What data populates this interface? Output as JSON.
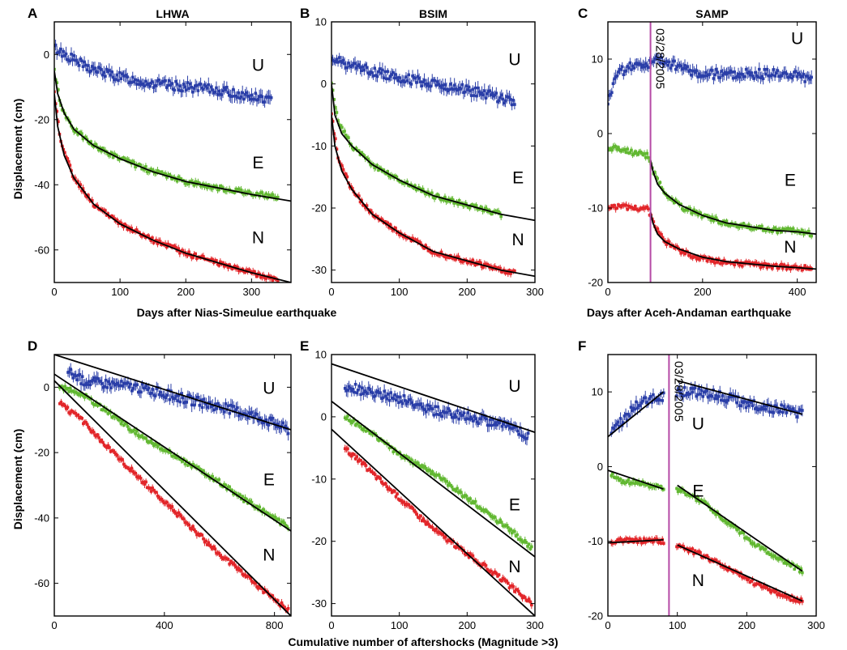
{
  "figure": {
    "xlabel_top_left": "Days after Nias-Simeulue earthquake",
    "xlabel_top_right": "Days after Aceh-Andaman earthquake",
    "xlabel_bottom": "Cumulative number of aftershocks (Magnitude >3)",
    "ylabel": "Displacement (cm)"
  },
  "colors": {
    "U": "#2b3fa8",
    "E": "#62b832",
    "N": "#e2262a",
    "fit": "#000000",
    "event_line": "#b54aa6"
  },
  "chart_data": [
    {
      "id": "A",
      "panel_label": "A",
      "title": "LHWA",
      "type": "scatter",
      "xlim": [
        0,
        360
      ],
      "ylim": [
        -70,
        10
      ],
      "xticks": [
        0,
        100,
        200,
        300
      ],
      "yticks": [
        -60,
        -40,
        -20,
        0
      ],
      "series": [
        {
          "name": "U",
          "x": [
            0,
            50,
            100,
            150,
            200,
            250,
            300,
            330
          ],
          "y": [
            2,
            -4,
            -7,
            -9,
            -10,
            -11,
            -13,
            -14
          ]
        },
        {
          "name": "E",
          "x": [
            0,
            10,
            30,
            60,
            100,
            150,
            200,
            250,
            300,
            340
          ],
          "y": [
            -5,
            -16,
            -23,
            -28,
            -32,
            -36,
            -39,
            -41,
            -42.5,
            -44
          ]
        },
        {
          "name": "N",
          "x": [
            0,
            10,
            30,
            60,
            100,
            150,
            200,
            250,
            300,
            340
          ],
          "y": [
            -12,
            -27,
            -38,
            -46,
            -52,
            -57,
            -61,
            -64,
            -67,
            -69
          ]
        }
      ],
      "fits": [
        {
          "name": "E",
          "x": [
            0,
            5,
            15,
            30,
            60,
            100,
            150,
            200,
            250,
            300,
            360
          ],
          "y": [
            -5,
            -12,
            -18,
            -23,
            -28,
            -32,
            -36,
            -39,
            -41,
            -43,
            -45
          ]
        },
        {
          "name": "N",
          "x": [
            0,
            5,
            15,
            30,
            60,
            100,
            150,
            200,
            250,
            300,
            360
          ],
          "y": [
            -12,
            -22,
            -31,
            -38,
            -46,
            -52,
            -57,
            -61,
            -64,
            -67,
            -70
          ]
        }
      ],
      "labels": [
        {
          "text": "U",
          "x": 310,
          "y": -5
        },
        {
          "text": "E",
          "x": 310,
          "y": -35
        },
        {
          "text": "N",
          "x": 310,
          "y": -58
        }
      ]
    },
    {
      "id": "B",
      "panel_label": "B",
      "title": "BSIM",
      "type": "scatter",
      "xlim": [
        0,
        300
      ],
      "ylim": [
        -32,
        10
      ],
      "xticks": [
        0,
        100,
        200,
        300
      ],
      "yticks": [
        -30,
        -20,
        -10,
        0,
        10
      ],
      "series": [
        {
          "name": "U",
          "x": [
            0,
            30,
            60,
            100,
            150,
            200,
            240,
            270
          ],
          "y": [
            4,
            3,
            2,
            1,
            0,
            -1,
            -2,
            -3
          ]
        },
        {
          "name": "E",
          "x": [
            0,
            10,
            30,
            60,
            100,
            150,
            200,
            250
          ],
          "y": [
            0,
            -6,
            -10,
            -13,
            -15.5,
            -18,
            -19.5,
            -21
          ]
        },
        {
          "name": "N",
          "x": [
            0,
            10,
            30,
            60,
            100,
            150,
            200,
            250,
            270
          ],
          "y": [
            -5,
            -12,
            -17,
            -21,
            -24,
            -27,
            -28.5,
            -30,
            -30.5
          ]
        }
      ],
      "fits": [
        {
          "name": "E",
          "x": [
            0,
            5,
            15,
            30,
            60,
            100,
            150,
            200,
            250,
            300
          ],
          "y": [
            0,
            -5,
            -8,
            -10,
            -13,
            -15.5,
            -18,
            -19.5,
            -21,
            -22
          ]
        },
        {
          "name": "N",
          "x": [
            0,
            5,
            15,
            30,
            60,
            100,
            150,
            200,
            250,
            300
          ],
          "y": [
            -5,
            -10,
            -14,
            -17,
            -21,
            -24,
            -27,
            -28.5,
            -30,
            -31
          ]
        }
      ],
      "labels": [
        {
          "text": "U",
          "x": 270,
          "y": 3
        },
        {
          "text": "E",
          "x": 275,
          "y": -16
        },
        {
          "text": "N",
          "x": 275,
          "y": -26
        }
      ]
    },
    {
      "id": "C",
      "panel_label": "C",
      "title": "SAMP",
      "type": "scatter",
      "xlim": [
        0,
        440
      ],
      "ylim": [
        -20,
        15
      ],
      "xticks": [
        0,
        200,
        400
      ],
      "yticks": [
        -20,
        -10,
        0,
        10
      ],
      "event_x": 90,
      "event_text": "03/28/2005",
      "series": [
        {
          "name": "U",
          "x": [
            0,
            20,
            50,
            90,
            100,
            150,
            200,
            250,
            300,
            350,
            400,
            430
          ],
          "y": [
            4,
            8,
            9,
            9.5,
            10,
            9,
            8,
            8,
            8,
            8,
            8,
            7
          ]
        },
        {
          "name": "E",
          "x": [
            0,
            20,
            50,
            85,
            95,
            120,
            160,
            200,
            250,
            300,
            350,
            400,
            430
          ],
          "y": [
            -2,
            -2,
            -2.5,
            -3,
            -5,
            -8,
            -10,
            -11,
            -12,
            -12.5,
            -13,
            -13,
            -13.5
          ]
        },
        {
          "name": "N",
          "x": [
            0,
            20,
            50,
            85,
            95,
            120,
            160,
            200,
            250,
            300,
            350,
            400,
            430
          ],
          "y": [
            -10,
            -9.8,
            -10,
            -10,
            -12,
            -14.5,
            -16,
            -16.8,
            -17.3,
            -17.6,
            -17.8,
            -18,
            -18
          ]
        }
      ],
      "fits": [
        {
          "name": "E",
          "x": [
            90,
            95,
            105,
            120,
            150,
            200,
            250,
            300,
            350,
            400,
            440
          ],
          "y": [
            -3.5,
            -5,
            -6.8,
            -8,
            -9.5,
            -11,
            -12,
            -12.5,
            -13,
            -13.2,
            -13.5
          ]
        },
        {
          "name": "N",
          "x": [
            90,
            95,
            105,
            120,
            150,
            200,
            250,
            300,
            350,
            400,
            440
          ],
          "y": [
            -10.5,
            -12,
            -13.5,
            -14.5,
            -15.5,
            -16.6,
            -17.2,
            -17.5,
            -17.8,
            -18,
            -18.2
          ]
        }
      ],
      "labels": [
        {
          "text": "U",
          "x": 400,
          "y": 12
        },
        {
          "text": "E",
          "x": 385,
          "y": -7
        },
        {
          "text": "N",
          "x": 385,
          "y": -16
        }
      ]
    },
    {
      "id": "D",
      "panel_label": "D",
      "title": "",
      "type": "scatter",
      "xlim": [
        0,
        860
      ],
      "ylim": [
        -70,
        10
      ],
      "xticks": [
        0,
        400,
        800
      ],
      "yticks": [
        -60,
        -40,
        -20,
        0
      ],
      "series": [
        {
          "name": "U",
          "x": [
            50,
            100,
            200,
            300,
            400,
            500,
            600,
            700,
            800,
            850
          ],
          "y": [
            5,
            2,
            1,
            0,
            -2,
            -4,
            -6,
            -8,
            -11,
            -13
          ]
        },
        {
          "name": "E",
          "x": [
            20,
            100,
            200,
            300,
            400,
            500,
            600,
            700,
            800,
            850
          ],
          "y": [
            0,
            -2,
            -8,
            -14,
            -19,
            -24,
            -29,
            -35,
            -40,
            -43
          ]
        },
        {
          "name": "N",
          "x": [
            20,
            100,
            200,
            300,
            400,
            500,
            600,
            700,
            800,
            850
          ],
          "y": [
            -5,
            -10,
            -19,
            -27,
            -35,
            -43,
            -51,
            -58,
            -65,
            -68
          ]
        }
      ],
      "fits": [
        {
          "name": "U",
          "x": [
            0,
            860
          ],
          "y": [
            10,
            -13
          ]
        },
        {
          "name": "E",
          "x": [
            0,
            860
          ],
          "y": [
            4,
            -44
          ]
        },
        {
          "name": "N",
          "x": [
            0,
            860
          ],
          "y": [
            2,
            -70
          ]
        }
      ],
      "labels": [
        {
          "text": "U",
          "x": 780,
          "y": -2
        },
        {
          "text": "E",
          "x": 780,
          "y": -30
        },
        {
          "text": "N",
          "x": 780,
          "y": -53
        }
      ]
    },
    {
      "id": "E",
      "panel_label": "E",
      "title": "",
      "type": "scatter",
      "xlim": [
        0,
        300
      ],
      "ylim": [
        -32,
        10
      ],
      "xticks": [
        0,
        100,
        200,
        300
      ],
      "yticks": [
        -30,
        -20,
        -10,
        0,
        10
      ],
      "series": [
        {
          "name": "U",
          "x": [
            20,
            50,
            100,
            150,
            200,
            250,
            290
          ],
          "y": [
            5,
            4,
            3,
            1,
            0,
            -1,
            -3
          ]
        },
        {
          "name": "E",
          "x": [
            20,
            50,
            100,
            150,
            200,
            250,
            295
          ],
          "y": [
            0,
            -2,
            -6,
            -9,
            -13,
            -17,
            -21
          ]
        },
        {
          "name": "N",
          "x": [
            20,
            50,
            100,
            150,
            200,
            250,
            295
          ],
          "y": [
            -5,
            -8,
            -13,
            -18,
            -22,
            -26,
            -30
          ]
        }
      ],
      "fits": [
        {
          "name": "U",
          "x": [
            0,
            300
          ],
          "y": [
            8.5,
            -2.5
          ]
        },
        {
          "name": "E",
          "x": [
            0,
            300
          ],
          "y": [
            2.5,
            -22.5
          ]
        },
        {
          "name": "N",
          "x": [
            0,
            300
          ],
          "y": [
            -2,
            -32
          ]
        }
      ],
      "labels": [
        {
          "text": "U",
          "x": 270,
          "y": 4
        },
        {
          "text": "E",
          "x": 270,
          "y": -15
        },
        {
          "text": "N",
          "x": 270,
          "y": -25
        }
      ]
    },
    {
      "id": "F",
      "panel_label": "F",
      "title": "",
      "type": "scatter",
      "xlim": [
        0,
        300
      ],
      "ylim": [
        -20,
        15
      ],
      "xticks": [
        0,
        100,
        200,
        300
      ],
      "yticks": [
        -20,
        -10,
        0,
        10
      ],
      "event_x": 88,
      "event_text": "03/28/2005",
      "series": [
        {
          "name": "U",
          "x": [
            5,
            20,
            40,
            60,
            80,
            100,
            140,
            180,
            220,
            260,
            280
          ],
          "y": [
            5,
            6,
            8,
            9,
            9.5,
            10,
            10,
            9,
            8,
            7.5,
            7
          ]
        },
        {
          "name": "E",
          "x": [
            5,
            20,
            40,
            60,
            80,
            100,
            140,
            180,
            220,
            260,
            280
          ],
          "y": [
            -1,
            -2,
            -2,
            -2.5,
            -3,
            -3,
            -5,
            -8,
            -11,
            -13,
            -14
          ]
        },
        {
          "name": "N",
          "x": [
            5,
            20,
            40,
            60,
            80,
            100,
            140,
            180,
            220,
            260,
            280
          ],
          "y": [
            -10,
            -9.8,
            -10,
            -9.8,
            -10,
            -10.5,
            -12,
            -14,
            -16,
            -17.5,
            -18
          ]
        }
      ],
      "fits": [
        {
          "name": "U",
          "x": [
            0,
            80
          ],
          "y": [
            4,
            10
          ]
        },
        {
          "name": "U",
          "x": [
            100,
            280
          ],
          "y": [
            11.5,
            7
          ]
        },
        {
          "name": "E",
          "x": [
            0,
            80
          ],
          "y": [
            -0.5,
            -3
          ]
        },
        {
          "name": "E",
          "x": [
            100,
            280
          ],
          "y": [
            -2.5,
            -14
          ]
        },
        {
          "name": "N",
          "x": [
            0,
            80
          ],
          "y": [
            -10.2,
            -9.8
          ]
        },
        {
          "name": "N",
          "x": [
            100,
            280
          ],
          "y": [
            -10.5,
            -18
          ]
        }
      ],
      "labels": [
        {
          "text": "U",
          "x": 130,
          "y": 5
        },
        {
          "text": "E",
          "x": 130,
          "y": -4
        },
        {
          "text": "N",
          "x": 130,
          "y": -16
        }
      ]
    }
  ]
}
